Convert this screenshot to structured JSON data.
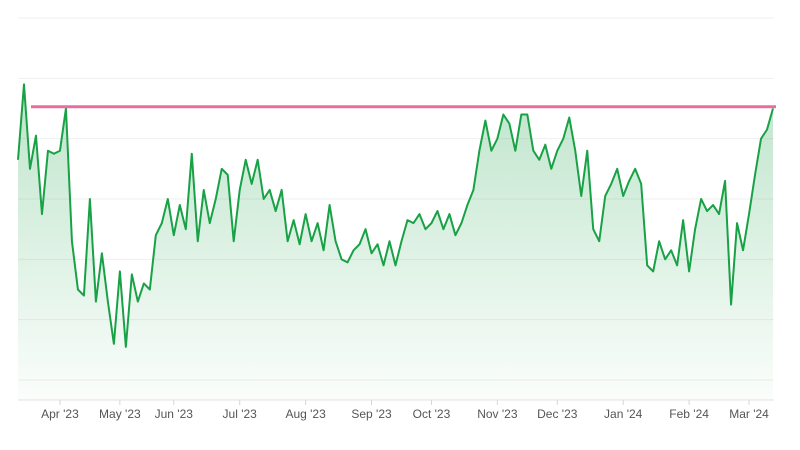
{
  "chart_data": {
    "type": "area",
    "categories": [
      null,
      null,
      null,
      null,
      null,
      null,
      null,
      "Apr '23",
      null,
      null,
      null,
      null,
      null,
      null,
      null,
      null,
      null,
      "May '23",
      null,
      null,
      null,
      null,
      null,
      null,
      null,
      null,
      "Jun '23",
      null,
      null,
      null,
      null,
      null,
      null,
      null,
      null,
      null,
      null,
      "Jul '23",
      null,
      null,
      null,
      null,
      null,
      null,
      null,
      null,
      null,
      null,
      "Aug '23",
      null,
      null,
      null,
      null,
      null,
      null,
      null,
      null,
      null,
      null,
      "Sep '23",
      null,
      null,
      null,
      null,
      null,
      null,
      null,
      null,
      null,
      "Oct '23",
      null,
      null,
      null,
      null,
      null,
      null,
      null,
      null,
      null,
      null,
      "Nov '23",
      null,
      null,
      null,
      null,
      null,
      null,
      null,
      null,
      null,
      "Dec '23",
      null,
      null,
      null,
      null,
      null,
      null,
      null,
      null,
      null,
      null,
      "Jan '24",
      null,
      null,
      null,
      null,
      null,
      null,
      null,
      null,
      null,
      null,
      "Feb '24",
      null,
      null,
      null,
      null,
      null,
      null,
      null,
      null,
      null,
      "Mar '24",
      null,
      null,
      null,
      null
    ],
    "values": [
      3.65,
      4.9,
      3.5,
      4.05,
      2.75,
      3.8,
      3.75,
      3.8,
      4.5,
      2.3,
      1.5,
      1.4,
      3.0,
      1.3,
      2.1,
      1.3,
      0.6,
      1.8,
      0.55,
      1.75,
      1.3,
      1.6,
      1.5,
      2.4,
      2.6,
      3.0,
      2.4,
      2.9,
      2.5,
      3.75,
      2.3,
      3.15,
      2.6,
      3.0,
      3.5,
      3.4,
      2.3,
      3.15,
      3.65,
      3.25,
      3.65,
      3.0,
      3.15,
      2.8,
      3.15,
      2.3,
      2.65,
      2.25,
      2.75,
      2.3,
      2.6,
      2.15,
      2.9,
      2.3,
      2.0,
      1.95,
      2.15,
      2.25,
      2.5,
      2.1,
      2.25,
      1.9,
      2.3,
      1.9,
      2.3,
      2.65,
      2.6,
      2.75,
      2.5,
      2.6,
      2.8,
      2.5,
      2.75,
      2.4,
      2.6,
      2.9,
      3.15,
      3.8,
      4.3,
      3.8,
      4.0,
      4.4,
      4.25,
      3.8,
      4.4,
      4.4,
      3.8,
      3.65,
      3.9,
      3.5,
      3.8,
      4.0,
      4.35,
      3.8,
      3.05,
      3.8,
      2.5,
      2.3,
      3.05,
      3.25,
      3.5,
      3.05,
      3.3,
      3.5,
      3.25,
      1.9,
      1.8,
      2.3,
      2.0,
      2.15,
      1.9,
      2.65,
      1.8,
      2.5,
      3.0,
      2.8,
      2.9,
      2.75,
      3.3,
      1.25,
      2.6,
      2.15,
      2.75,
      3.4,
      4.0,
      4.15,
      4.5
    ],
    "color": "#19a146",
    "ylim": [
      0,
      6
    ],
    "yticks": [
      0,
      1,
      2,
      3,
      4,
      5,
      6
    ],
    "grid": true,
    "tick_labels": false,
    "reference_line": {
      "value": 4.53,
      "color": "#e5709f"
    }
  }
}
